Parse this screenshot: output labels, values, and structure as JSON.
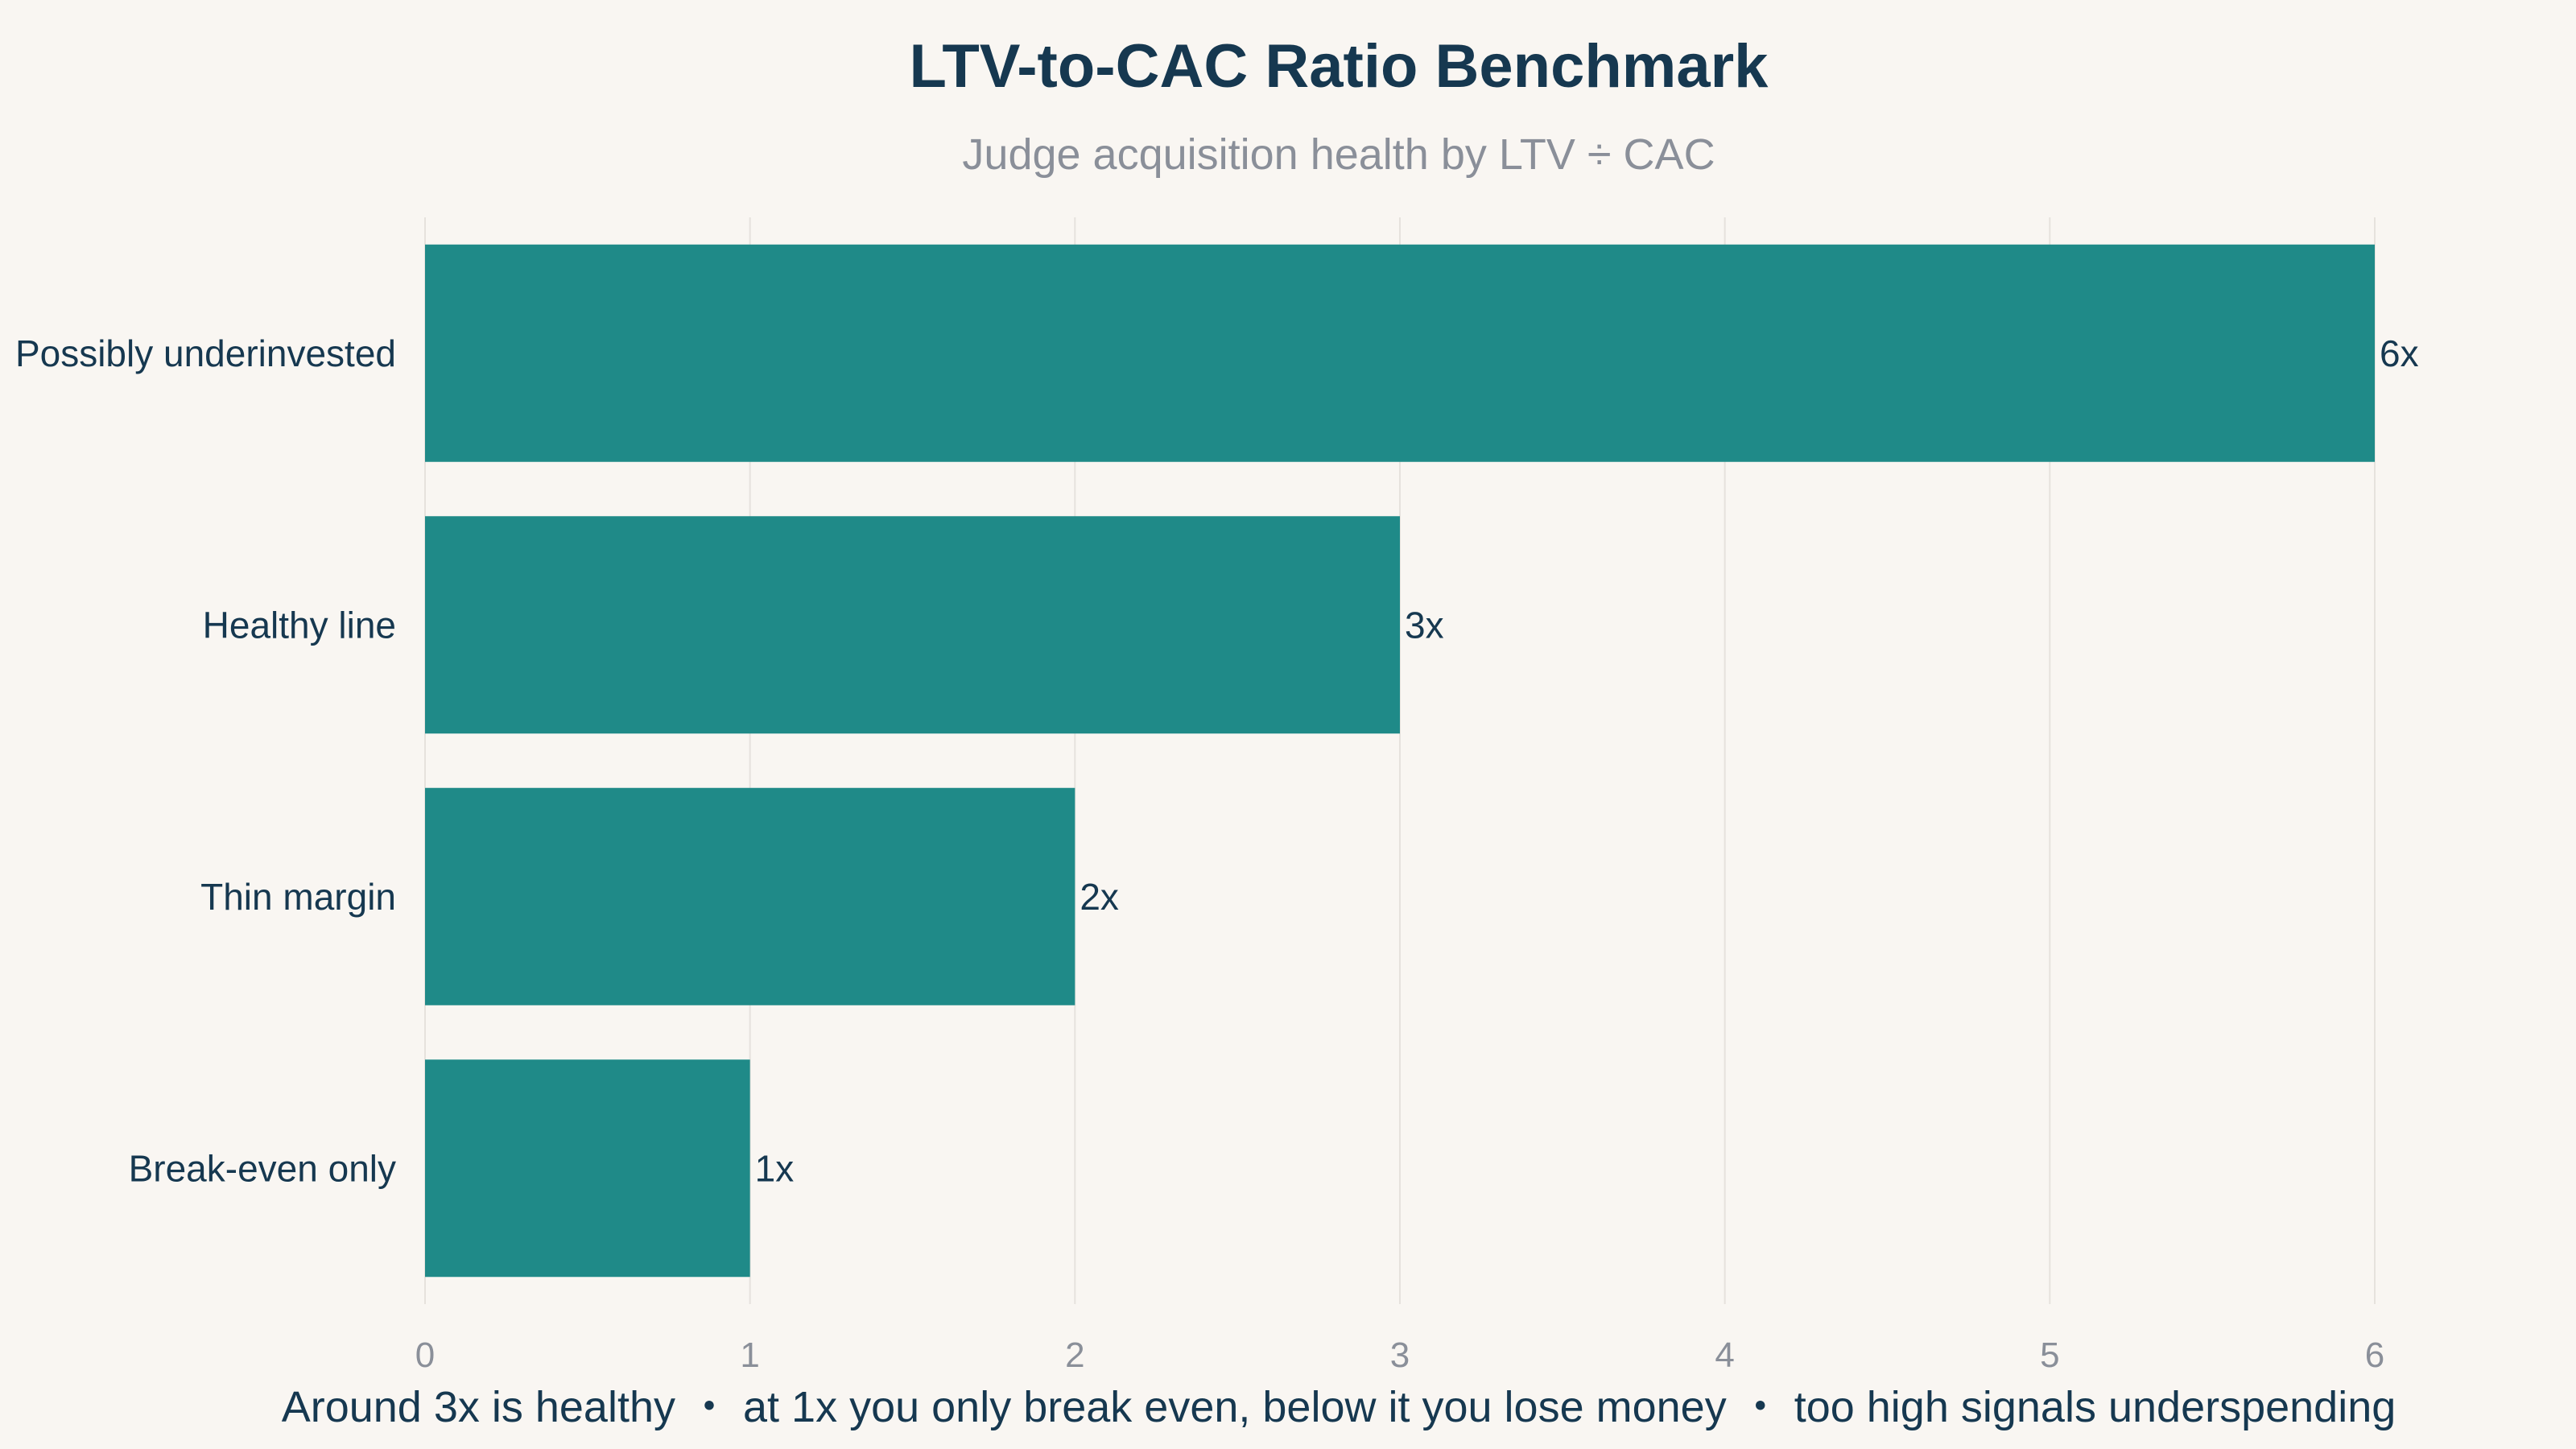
{
  "chart_data": {
    "type": "bar",
    "orientation": "horizontal",
    "title": "LTV-to-CAC Ratio Benchmark",
    "subtitle": "Judge acquisition health by LTV ÷ CAC",
    "categories": [
      "Possibly underinvested",
      "Healthy line",
      "Thin margin",
      "Break-even only"
    ],
    "values": [
      6,
      3,
      2,
      1
    ],
    "value_labels": [
      "6x",
      "3x",
      "2x",
      "1x"
    ],
    "xlim": [
      0,
      6
    ],
    "x_ticks": [
      "0",
      "1",
      "2",
      "3",
      "4",
      "5",
      "6"
    ],
    "grid": "vertical",
    "footnote": "Around 3x is healthy ・ at 1x you only break even, below it you lose money ・ too high signals underspending",
    "colors": {
      "background": "#f9f6f2",
      "bar": "#1f8a88",
      "title": "#163850",
      "subtitle": "#8a8f99",
      "text": "#163850",
      "tick": "#8a8f99",
      "grid": "#e6e2dd"
    }
  }
}
